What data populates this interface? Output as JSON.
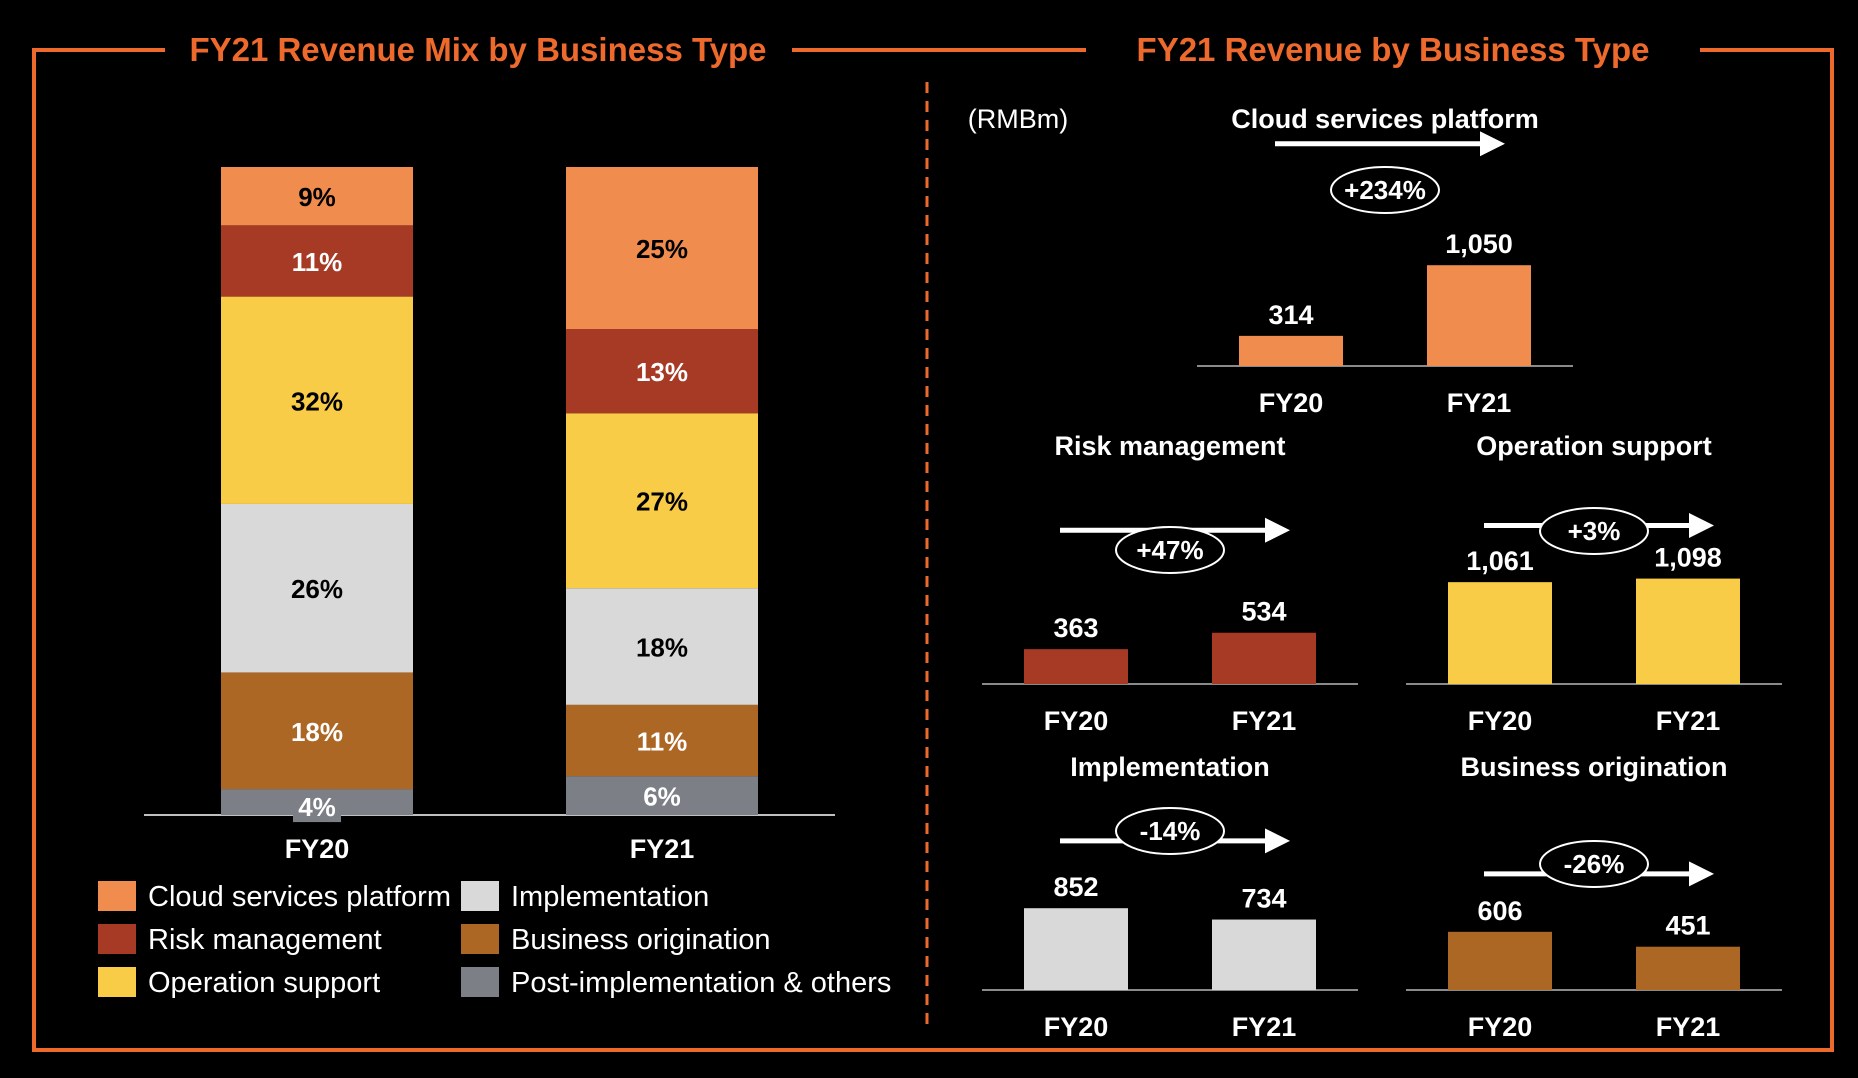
{
  "colors": {
    "accent": "#ee6a2c",
    "background": "#000000",
    "cloud": "#ef8c4e",
    "risk": "#a63a24",
    "operation": "#f8cc46",
    "implementation": "#d9d9d9",
    "origination": "#ad6725",
    "post": "#7c7f85"
  },
  "left_title": "FY21 Revenue Mix by Business Type",
  "right_title": "FY21 Revenue by Business Type",
  "unit_label": "(RMBm)",
  "chart_data": [
    {
      "type": "bar",
      "stacked": true,
      "percent": true,
      "title": "FY21 Revenue Mix by Business Type",
      "categories": [
        "FY20",
        "FY21"
      ],
      "series": [
        {
          "name": "Post-implementation & others",
          "key": "post",
          "values": [
            4,
            6
          ],
          "labels": [
            "4%",
            "6%"
          ]
        },
        {
          "name": "Business origination",
          "key": "origination",
          "values": [
            18,
            11
          ],
          "labels": [
            "18%",
            "11%"
          ]
        },
        {
          "name": "Implementation",
          "key": "implementation",
          "values": [
            26,
            18
          ],
          "labels": [
            "26%",
            "18%"
          ]
        },
        {
          "name": "Operation support",
          "key": "operation",
          "values": [
            32,
            27
          ],
          "labels": [
            "32%",
            "27%"
          ]
        },
        {
          "name": "Risk management",
          "key": "risk",
          "values": [
            11,
            13
          ],
          "labels": [
            "11%",
            "13%"
          ]
        },
        {
          "name": "Cloud services platform",
          "key": "cloud",
          "values": [
            9,
            25
          ],
          "labels": [
            "9%",
            "25%"
          ]
        }
      ],
      "legend": [
        {
          "label": "Cloud services platform",
          "key": "cloud"
        },
        {
          "label": "Implementation",
          "key": "implementation"
        },
        {
          "label": "Risk management",
          "key": "risk"
        },
        {
          "label": "Business origination",
          "key": "origination"
        },
        {
          "label": "Operation support",
          "key": "operation"
        },
        {
          "label": "Post-implementation & others",
          "key": "post"
        }
      ],
      "legend_position": "bottom"
    },
    {
      "type": "bar",
      "title": "Cloud services platform",
      "key": "cloud",
      "categories": [
        "FY20",
        "FY21"
      ],
      "values": [
        314,
        1050
      ],
      "value_labels": [
        "314",
        "1,050"
      ],
      "growth": "+234%",
      "ylim": [
        0,
        1100
      ]
    },
    {
      "type": "bar",
      "title": "Risk management",
      "key": "risk",
      "categories": [
        "FY20",
        "FY21"
      ],
      "values": [
        363,
        534
      ],
      "value_labels": [
        "363",
        "534"
      ],
      "growth": "+47%",
      "ylim": [
        0,
        1100
      ]
    },
    {
      "type": "bar",
      "title": "Operation support",
      "key": "operation",
      "categories": [
        "FY20",
        "FY21"
      ],
      "values": [
        1061,
        1098
      ],
      "value_labels": [
        "1,061",
        "1,098"
      ],
      "growth": "+3%",
      "ylim": [
        0,
        1100
      ]
    },
    {
      "type": "bar",
      "title": "Implementation",
      "key": "implementation",
      "categories": [
        "FY20",
        "FY21"
      ],
      "values": [
        852,
        734
      ],
      "value_labels": [
        "852",
        "734"
      ],
      "growth": "-14%",
      "ylim": [
        0,
        1100
      ]
    },
    {
      "type": "bar",
      "title": "Business origination",
      "key": "origination",
      "categories": [
        "FY20",
        "FY21"
      ],
      "values": [
        606,
        451
      ],
      "value_labels": [
        "606",
        "451"
      ],
      "growth": "-26%",
      "ylim": [
        0,
        1100
      ]
    }
  ]
}
